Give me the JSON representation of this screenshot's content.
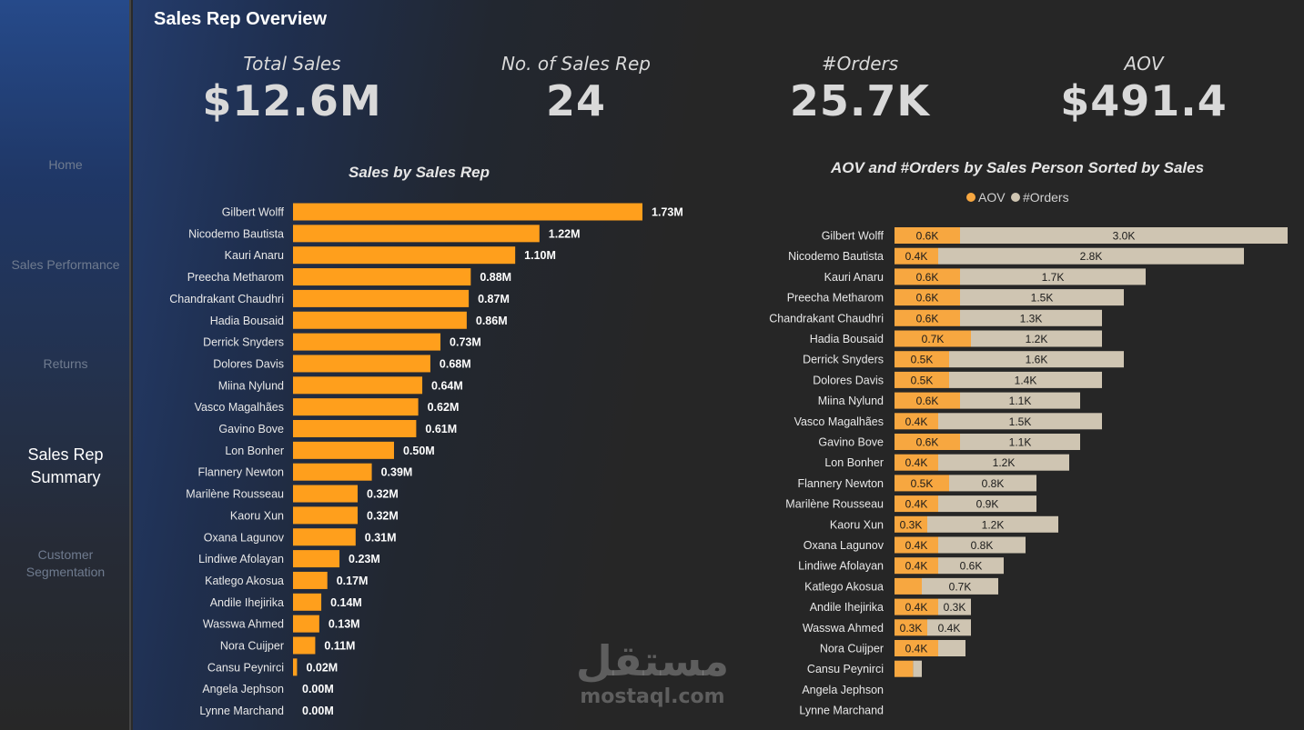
{
  "sidebar": {
    "items": [
      {
        "label": "Home",
        "active": false
      },
      {
        "label": "Sales Performance",
        "active": false
      },
      {
        "label": "Returns",
        "active": false
      },
      {
        "label": "Sales Rep\nSummary",
        "active": true
      },
      {
        "label": "Customer\nSegmentation",
        "active": false
      }
    ]
  },
  "header": {
    "title": "Sales Rep Overview"
  },
  "kpis": [
    {
      "label": "Total Sales",
      "value": "$12.6M"
    },
    {
      "label": "No. of Sales Rep",
      "value": "24"
    },
    {
      "label": "#Orders",
      "value": "25.7K"
    },
    {
      "label": "AOV",
      "value": "$491.4"
    }
  ],
  "colors": {
    "accent": "#ff9f1c",
    "aov": "#f7a740",
    "orders": "#cfc5b2",
    "label_dark": "#1a1a1a",
    "label_light": "#ffffff"
  },
  "watermark": {
    "arabic": "مستقل",
    "latin": "mostaql.com"
  },
  "chart_data": [
    {
      "type": "bar",
      "orientation": "horizontal",
      "title": "Sales by Sales Rep",
      "categories": [
        "Gilbert Wolff",
        "Nicodemo Bautista",
        "Kauri Anaru",
        "Preecha Metharom",
        "Chandrakant Chaudhri",
        "Hadia Bousaid",
        "Derrick Snyders",
        "Dolores Davis",
        "Miina Nylund",
        "Vasco Magalhães",
        "Gavino Bove",
        "Lon Bonher",
        "Flannery Newton",
        "Marilène Rousseau",
        "Kaoru Xun",
        "Oxana Lagunov",
        "Lindiwe Afolayan",
        "Katlego Akosua",
        "Andile Ihejirika",
        "Wasswa Ahmed",
        "Nora Cuijper",
        "Cansu Peynirci",
        "Angela Jephson",
        "Lynne Marchand"
      ],
      "values": [
        1.73,
        1.22,
        1.1,
        0.88,
        0.87,
        0.86,
        0.73,
        0.68,
        0.64,
        0.62,
        0.61,
        0.5,
        0.39,
        0.32,
        0.32,
        0.31,
        0.23,
        0.17,
        0.14,
        0.13,
        0.11,
        0.02,
        0.0,
        0.0
      ],
      "labels": [
        "1.73M",
        "1.22M",
        "1.10M",
        "0.88M",
        "0.87M",
        "0.86M",
        "0.73M",
        "0.68M",
        "0.64M",
        "0.62M",
        "0.61M",
        "0.50M",
        "0.39M",
        "0.32M",
        "0.32M",
        "0.31M",
        "0.23M",
        "0.17M",
        "0.14M",
        "0.13M",
        "0.11M",
        "0.02M",
        "0.00M",
        "0.00M"
      ],
      "unit": "M",
      "xlim": [
        0,
        1.73
      ]
    },
    {
      "type": "bar",
      "orientation": "horizontal",
      "stacked": true,
      "title": "AOV and #Orders by Sales Person Sorted by Sales",
      "legend": [
        "AOV",
        "#Orders"
      ],
      "categories": [
        "Gilbert Wolff",
        "Nicodemo Bautista",
        "Kauri Anaru",
        "Preecha Metharom",
        "Chandrakant Chaudhri",
        "Hadia Bousaid",
        "Derrick Snyders",
        "Dolores Davis",
        "Miina Nylund",
        "Vasco Magalhães",
        "Gavino Bove",
        "Lon Bonher",
        "Flannery Newton",
        "Marilène Rousseau",
        "Kaoru Xun",
        "Oxana Lagunov",
        "Lindiwe Afolayan",
        "Katlego Akosua",
        "Andile Ihejirika",
        "Wasswa Ahmed",
        "Nora Cuijper",
        "Cansu Peynirci",
        "Angela Jephson",
        "Lynne Marchand"
      ],
      "series": [
        {
          "name": "AOV",
          "values": [
            0.6,
            0.4,
            0.6,
            0.6,
            0.6,
            0.7,
            0.5,
            0.5,
            0.6,
            0.4,
            0.6,
            0.4,
            0.5,
            0.4,
            0.3,
            0.4,
            0.4,
            0.25,
            0.4,
            0.3,
            0.4,
            0.17,
            0,
            0
          ],
          "labels": [
            "0.6K",
            "0.4K",
            "0.6K",
            "0.6K",
            "0.6K",
            "0.7K",
            "0.5K",
            "0.5K",
            "0.6K",
            "0.4K",
            "0.6K",
            "0.4K",
            "0.5K",
            "0.4K",
            "0.3K",
            "0.4K",
            "0.4K",
            "",
            "0.4K",
            "0.3K",
            "0.4K",
            "",
            "",
            ""
          ]
        },
        {
          "name": "#Orders",
          "values": [
            3.0,
            2.8,
            1.7,
            1.5,
            1.3,
            1.2,
            1.6,
            1.4,
            1.1,
            1.5,
            1.1,
            1.2,
            0.8,
            0.9,
            1.2,
            0.8,
            0.6,
            0.7,
            0.3,
            0.4,
            0.25,
            0.08,
            0,
            0
          ],
          "labels": [
            "3.0K",
            "2.8K",
            "1.7K",
            "1.5K",
            "1.3K",
            "1.2K",
            "1.6K",
            "1.4K",
            "1.1K",
            "1.5K",
            "1.1K",
            "1.2K",
            "0.8K",
            "0.9K",
            "1.2K",
            "0.8K",
            "0.6K",
            "0.7K",
            "0.3K",
            "0.4K",
            "",
            "",
            "",
            ""
          ]
        }
      ],
      "unit": "K",
      "xlim": [
        0,
        3.6
      ]
    }
  ]
}
